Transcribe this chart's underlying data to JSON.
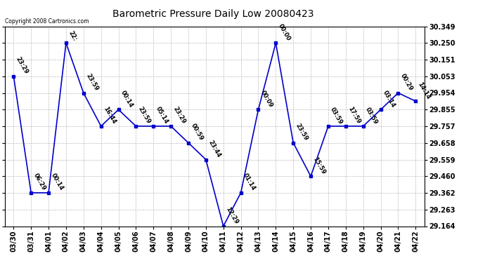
{
  "title": "Barometric Pressure Daily Low 20080423",
  "copyright": "Copyright 2008 Cartronics.com",
  "x_labels": [
    "03/30",
    "03/31",
    "04/01",
    "04/02",
    "04/03",
    "04/04",
    "04/05",
    "04/06",
    "04/07",
    "04/08",
    "04/09",
    "04/10",
    "04/11",
    "04/12",
    "04/13",
    "04/14",
    "04/15",
    "04/16",
    "04/17",
    "04/18",
    "04/19",
    "04/20",
    "04/21",
    "04/22"
  ],
  "y_values": [
    30.053,
    29.362,
    29.362,
    30.25,
    29.954,
    29.757,
    29.855,
    29.757,
    29.757,
    29.757,
    29.658,
    29.559,
    29.164,
    29.362,
    29.855,
    30.25,
    29.658,
    29.46,
    29.757,
    29.757,
    29.757,
    29.855,
    29.954,
    29.905
  ],
  "point_labels": [
    "23:29",
    "06:29",
    "00:14",
    "22:",
    "23:59",
    "16:44",
    "00:14",
    "23:59",
    "05:14",
    "23:29",
    "00:59",
    "23:44",
    "12:29",
    "01:14",
    "00:09",
    "00:00",
    "23:59",
    "15:59",
    "03:59",
    "17:59",
    "03:59",
    "03:14",
    "00:29",
    "14:14"
  ],
  "ylim_min": 29.164,
  "ylim_max": 30.349,
  "yticks": [
    29.164,
    29.263,
    29.362,
    29.46,
    29.559,
    29.658,
    29.757,
    29.855,
    29.954,
    30.053,
    30.151,
    30.25,
    30.349
  ],
  "line_color": "#0000cc",
  "marker_color": "#0000cc",
  "bg_color": "#ffffff",
  "grid_color": "#bbbbbb",
  "label_color": "#000000",
  "title_color": "#000000",
  "title_fontsize": 10,
  "tick_fontsize": 7,
  "label_fontsize": 6.5,
  "annotation_fontsize": 6
}
